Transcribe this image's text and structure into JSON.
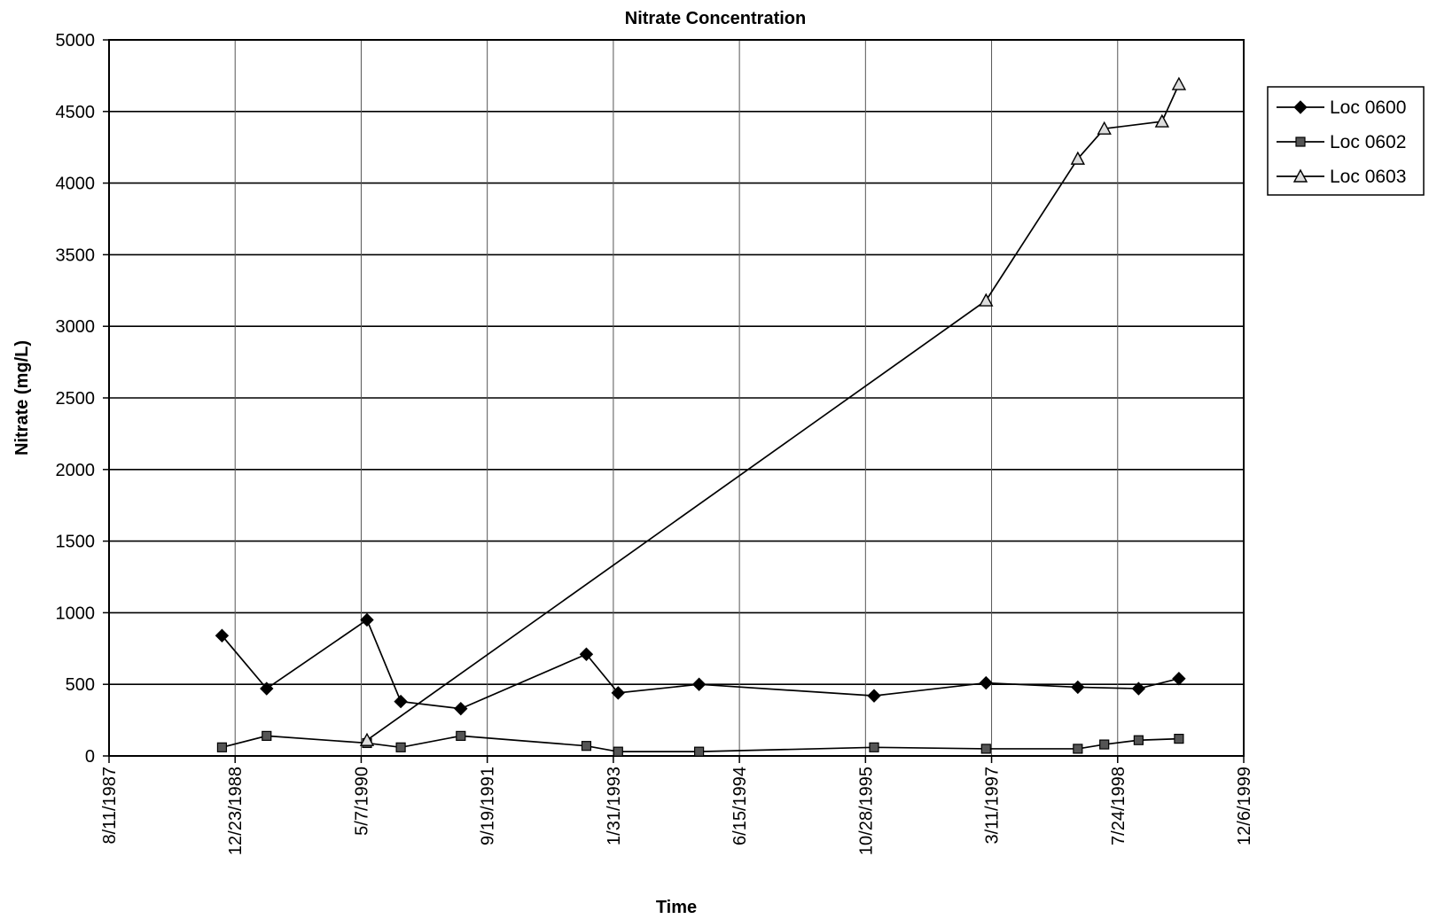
{
  "chart_data": {
    "type": "line",
    "title": "Nitrate Concentration",
    "xlabel": "Time",
    "ylabel": "Nitrate (mg/L)",
    "ylim": [
      0,
      5000
    ],
    "yticks": [
      "0",
      "500",
      "1000",
      "1500",
      "2000",
      "2500",
      "3000",
      "3500",
      "4000",
      "4500",
      "5000"
    ],
    "xlim": [
      "8/11/1987",
      "12/6/1999"
    ],
    "xticks": [
      "8/11/1987",
      "12/23/1988",
      "5/7/1990",
      "9/19/1991",
      "1/31/1993",
      "6/15/1994",
      "10/28/1995",
      "3/11/1997",
      "7/24/1998",
      "12/6/1999"
    ],
    "grid": true,
    "legend_position": "right",
    "series": [
      {
        "name": "Loc 0600",
        "marker": "diamond",
        "points": [
          {
            "x": "11/1/1988",
            "y": 840
          },
          {
            "x": "4/27/1989",
            "y": 470
          },
          {
            "x": "5/30/1990",
            "y": 950
          },
          {
            "x": "10/11/1990",
            "y": 380
          },
          {
            "x": "6/6/1991",
            "y": 330
          },
          {
            "x": "10/16/1992",
            "y": 710
          },
          {
            "x": "2/19/1993",
            "y": 440
          },
          {
            "x": "1/6/1994",
            "y": 500
          },
          {
            "x": "12/1/1995",
            "y": 420
          },
          {
            "x": "2/17/1997",
            "y": 510
          },
          {
            "x": "2/16/1998",
            "y": 480
          },
          {
            "x": "10/15/1998",
            "y": 470
          },
          {
            "x": "3/24/1999",
            "y": 540
          }
        ]
      },
      {
        "name": "Loc 0602",
        "marker": "square",
        "points": [
          {
            "x": "11/1/1988",
            "y": 60
          },
          {
            "x": "4/27/1989",
            "y": 140
          },
          {
            "x": "5/30/1990",
            "y": 90
          },
          {
            "x": "10/11/1990",
            "y": 60
          },
          {
            "x": "6/6/1991",
            "y": 140
          },
          {
            "x": "10/16/1992",
            "y": 70
          },
          {
            "x": "2/19/1993",
            "y": 30
          },
          {
            "x": "1/6/1994",
            "y": 30
          },
          {
            "x": "12/1/1995",
            "y": 60
          },
          {
            "x": "2/17/1997",
            "y": 50
          },
          {
            "x": "2/16/1998",
            "y": 50
          },
          {
            "x": "6/1/1998",
            "y": 80
          },
          {
            "x": "10/15/1998",
            "y": 110
          },
          {
            "x": "3/24/1999",
            "y": 120
          }
        ]
      },
      {
        "name": "Loc 0603",
        "marker": "triangle",
        "points": [
          {
            "x": "5/30/1990",
            "y": 110
          },
          {
            "x": "2/17/1997",
            "y": 3180
          },
          {
            "x": "2/16/1998",
            "y": 4170
          },
          {
            "x": "6/1/1998",
            "y": 4380
          },
          {
            "x": "1/16/1999",
            "y": 4430
          },
          {
            "x": "3/24/1999",
            "y": 4690
          }
        ]
      }
    ]
  }
}
